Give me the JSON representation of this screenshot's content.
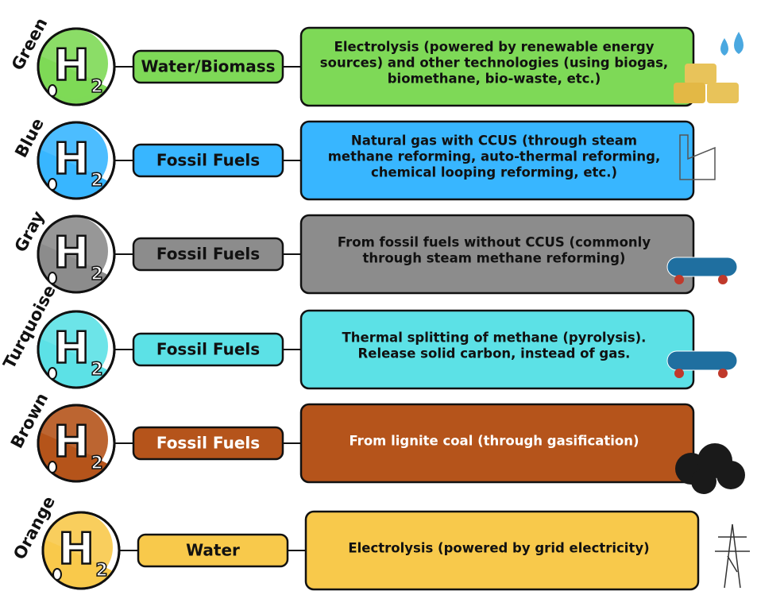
{
  "symbol": {
    "letter": "H",
    "subscript": "2"
  },
  "rows": [
    {
      "color_name": "Green",
      "source": "Water/Biomass",
      "description": [
        "Electrolysis (powered by renewable energy",
        "sources) and other technologies (using biogas,",
        "biomethane, bio-waste, etc.)"
      ]
    },
    {
      "color_name": "Blue",
      "source": "Fossil Fuels",
      "description": [
        "Natural gas with CCUS (through steam",
        "methane reforming, auto-thermal reforming,",
        "chemical looping reforming, etc.)"
      ]
    },
    {
      "color_name": "Gray",
      "source": "Fossil Fuels",
      "description": [
        "From fossil fuels without CCUS (commonly",
        "through steam methane reforming)"
      ]
    },
    {
      "color_name": "Turquoise",
      "source": "Fossil Fuels",
      "description": [
        "Thermal splitting of methane (pyrolysis).",
        "Release  solid carbon, instead of gas."
      ]
    },
    {
      "color_name": "Brown",
      "source": "Fossil Fuels",
      "description": [
        "From lignite coal (through gasification)"
      ]
    },
    {
      "color_name": "Orange",
      "source": "Water",
      "description": [
        "Electrolysis (powered by grid electricity)"
      ]
    }
  ]
}
